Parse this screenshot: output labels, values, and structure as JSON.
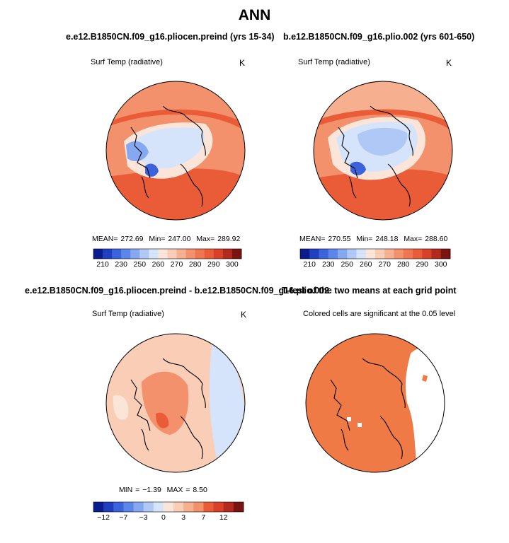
{
  "page_title": "ANN",
  "chart_data": [
    {
      "type": "heatmap",
      "projection": "north polar stereographic",
      "title": "e.e12.B1850CN.f09_g16.pliocen.preind (yrs 15-34)",
      "variable_label": "Surf Temp (radiative)",
      "units": "K",
      "stats_text": {
        "mean_label": "MEAN=",
        "mean": "272.69",
        "min_label": "Min=",
        "min": "247.00",
        "max_label": "Max=",
        "max": "289.92"
      },
      "colorbar": {
        "levels": [
          205,
          210,
          220,
          230,
          240,
          250,
          255,
          260,
          265,
          270,
          275,
          280,
          285,
          290,
          295,
          300,
          305
        ],
        "tick_labels": [
          "210",
          "230",
          "250",
          "260",
          "270",
          "280",
          "290",
          "300"
        ],
        "colors": [
          "#0a1d8f",
          "#1f3fc0",
          "#3b63dc",
          "#5d86ea",
          "#86a8f0",
          "#b0c8f5",
          "#d5e4fa",
          "#fbe5d9",
          "#f9cdb6",
          "#f6af8f",
          "#f3916c",
          "#ef7650",
          "#ea5c38",
          "#d8402a",
          "#b22a1e",
          "#7a1410"
        ]
      }
    },
    {
      "type": "heatmap",
      "projection": "north polar stereographic",
      "title": "b.e12.B1850CN.f09_g16.plio.002 (yrs 601-650)",
      "variable_label": "Surf Temp (radiative)",
      "units": "K",
      "stats_text": {
        "mean_label": "MEAN=",
        "mean": "270.55",
        "min_label": "Min=",
        "min": "248.18",
        "max_label": "Max=",
        "max": "288.60"
      },
      "colorbar": {
        "levels": [
          205,
          210,
          220,
          230,
          240,
          250,
          255,
          260,
          265,
          270,
          275,
          280,
          285,
          290,
          295,
          300,
          305
        ],
        "tick_labels": [
          "210",
          "230",
          "250",
          "260",
          "270",
          "280",
          "290",
          "300"
        ],
        "colors": [
          "#0a1d8f",
          "#1f3fc0",
          "#3b63dc",
          "#5d86ea",
          "#86a8f0",
          "#b0c8f5",
          "#d5e4fa",
          "#fbe5d9",
          "#f9cdb6",
          "#f6af8f",
          "#f3916c",
          "#ef7650",
          "#ea5c38",
          "#d8402a",
          "#b22a1e",
          "#7a1410"
        ]
      }
    },
    {
      "type": "heatmap",
      "projection": "north polar stereographic",
      "title": "e.e12.B1850CN.f09_g16.pliocen.preind - b.e12.B1850CN.f09_g16.plio.002",
      "variable_label": "Surf Temp (radiative)",
      "units": "K",
      "stats_text": {
        "min_label": "MIN =",
        "min": "−1.39",
        "max_label": "MAX =",
        "max": "8.50"
      },
      "colorbar": {
        "levels": [
          -17,
          -12,
          -10,
          -7,
          -5,
          -3,
          -1,
          0,
          1,
          3,
          5,
          7,
          10,
          12,
          15
        ],
        "tick_labels": [
          "−12",
          "−7",
          "−3",
          "0",
          "3",
          "7",
          "12"
        ],
        "colors": [
          "#0a1d8f",
          "#1f3fc0",
          "#3b63dc",
          "#5d86ea",
          "#86a8f0",
          "#b0c8f5",
          "#d5e4fa",
          "#fbe5d9",
          "#f9cdb6",
          "#f6af8f",
          "#f3916c",
          "#ea5c38",
          "#d8402a",
          "#b22a1e",
          "#7a1410"
        ]
      }
    },
    {
      "type": "heatmap",
      "projection": "north polar stereographic",
      "title": "T-test of the two means at each grid point",
      "variable_label": "Colored cells are significant at the 0.05 level",
      "significant_color": "#ef7a45"
    }
  ]
}
